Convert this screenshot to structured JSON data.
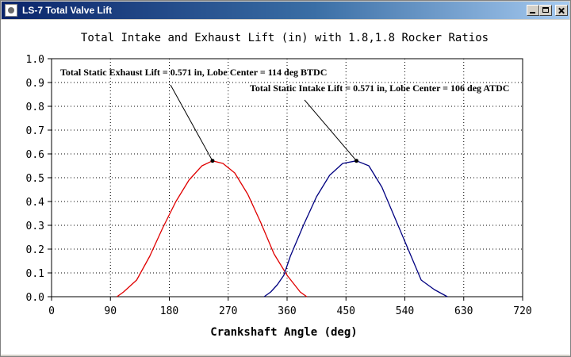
{
  "window": {
    "title": "LS-7 Total Valve Lift"
  },
  "chart_data": {
    "type": "line",
    "title": "Total Intake and Exhaust Lift (in) with 1.8,1.8 Rocker Ratios",
    "xlabel": "Crankshaft Angle (deg)",
    "ylabel": "",
    "xlim": [
      0,
      720
    ],
    "ylim": [
      0,
      1.0
    ],
    "xticks": [
      0,
      90,
      180,
      270,
      360,
      450,
      540,
      630,
      720
    ],
    "yticks": [
      0.0,
      0.1,
      0.2,
      0.3,
      0.4,
      0.5,
      0.6,
      0.7,
      0.8,
      0.9,
      1.0
    ],
    "grid": true,
    "series": [
      {
        "color": "#e00000",
        "x": [
          100,
          110,
          130,
          150,
          170,
          190,
          210,
          230,
          246,
          262,
          280,
          300,
          320,
          340,
          360,
          380,
          390
        ],
        "y": [
          0.0,
          0.02,
          0.07,
          0.17,
          0.29,
          0.4,
          0.49,
          0.55,
          0.571,
          0.56,
          0.52,
          0.43,
          0.31,
          0.18,
          0.09,
          0.02,
          0.0
        ]
      },
      {
        "color": "#000080",
        "x": [
          325,
          335,
          345,
          355,
          365,
          385,
          405,
          425,
          445,
          466,
          485,
          505,
          525,
          545,
          565,
          585,
          605
        ],
        "y": [
          0.0,
          0.02,
          0.05,
          0.09,
          0.17,
          0.3,
          0.42,
          0.51,
          0.56,
          0.571,
          0.55,
          0.46,
          0.33,
          0.2,
          0.07,
          0.03,
          0.0
        ]
      }
    ],
    "annotations": [
      {
        "text": "Total Static Exhaust Lift = 0.571 in, Lobe Center = 114 deg BTDC",
        "point": [
          246,
          0.571
        ]
      },
      {
        "text": "Total Static Intake Lift = 0.571 in, Lobe Center = 106 deg ATDC",
        "point": [
          466,
          0.571
        ]
      }
    ]
  }
}
